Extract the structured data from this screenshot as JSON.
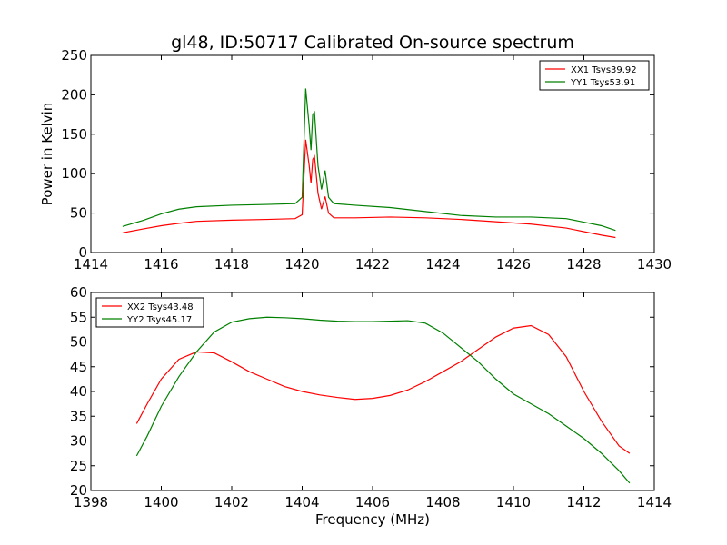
{
  "figure": {
    "title": "gl48, ID:50717 Calibrated On-source spectrum",
    "xlabel": "Frequency (MHz)"
  },
  "colors": {
    "xx": "#ff0000",
    "yy": "#008000",
    "frame": "#000000",
    "background": "#ffffff"
  },
  "chart_data": [
    {
      "type": "line",
      "title": "gl48, ID:50717 Calibrated On-source spectrum",
      "xlabel": "",
      "ylabel": "Power in Kelvin",
      "xlim": [
        1414,
        1430
      ],
      "ylim": [
        0,
        250
      ],
      "xticks": [
        1414,
        1416,
        1418,
        1420,
        1422,
        1424,
        1426,
        1428,
        1430
      ],
      "yticks": [
        0,
        50,
        100,
        150,
        200,
        250
      ],
      "grid": false,
      "legend_position": "top-right",
      "series": [
        {
          "name": "XX1 Tsys39.92",
          "color": "#ff0000",
          "x": [
            1414.9,
            1415.5,
            1416.0,
            1416.5,
            1417.0,
            1418.0,
            1419.0,
            1419.8,
            1420.0,
            1420.1,
            1420.2,
            1420.25,
            1420.3,
            1420.35,
            1420.45,
            1420.55,
            1420.65,
            1420.75,
            1420.9,
            1421.5,
            1422.5,
            1423.5,
            1424.5,
            1425.5,
            1426.5,
            1427.5,
            1428.5,
            1428.9
          ],
          "y": [
            25,
            30,
            34,
            37,
            39.5,
            41,
            42,
            43,
            48,
            143,
            110,
            88,
            118,
            122,
            75,
            55,
            71,
            50,
            44,
            44,
            45,
            44,
            42,
            39,
            36,
            31,
            22,
            19
          ]
        },
        {
          "name": "YY1 Tsys53.91",
          "color": "#008000",
          "x": [
            1414.9,
            1415.5,
            1416.0,
            1416.5,
            1417.0,
            1418.0,
            1419.0,
            1419.8,
            1420.0,
            1420.1,
            1420.2,
            1420.25,
            1420.3,
            1420.35,
            1420.45,
            1420.55,
            1420.65,
            1420.75,
            1420.9,
            1421.5,
            1422.5,
            1423.5,
            1424.5,
            1425.5,
            1426.5,
            1427.5,
            1428.5,
            1428.9
          ],
          "y": [
            33,
            41,
            49,
            55,
            58,
            60,
            61,
            62,
            70,
            208,
            160,
            130,
            175,
            178,
            110,
            80,
            104,
            70,
            62,
            60,
            57,
            52,
            47,
            45,
            45,
            43,
            34,
            28
          ]
        }
      ]
    },
    {
      "type": "line",
      "xlabel": "Frequency (MHz)",
      "ylabel": "",
      "xlim": [
        1398,
        1414
      ],
      "ylim": [
        20,
        60
      ],
      "xticks": [
        1398,
        1400,
        1402,
        1404,
        1406,
        1408,
        1410,
        1412,
        1414
      ],
      "yticks": [
        20,
        25,
        30,
        35,
        40,
        45,
        50,
        55,
        60
      ],
      "grid": false,
      "legend_position": "top-left",
      "series": [
        {
          "name": "XX2 Tsys43.48",
          "color": "#ff0000",
          "x": [
            1399.3,
            1399.6,
            1400.0,
            1400.5,
            1401.0,
            1401.5,
            1402.0,
            1402.5,
            1403.0,
            1403.5,
            1404.0,
            1404.5,
            1405.0,
            1405.5,
            1406.0,
            1406.5,
            1407.0,
            1407.5,
            1408.0,
            1408.5,
            1409.0,
            1409.5,
            1410.0,
            1410.5,
            1411.0,
            1411.5,
            1412.0,
            1412.5,
            1413.0,
            1413.3
          ],
          "y": [
            33.5,
            37.5,
            42.5,
            46.5,
            48,
            47.8,
            46,
            44,
            42.5,
            41,
            40,
            39.3,
            38.8,
            38.4,
            38.6,
            39.2,
            40.3,
            42,
            44,
            46,
            48.5,
            51,
            52.8,
            53.3,
            51.5,
            47,
            40,
            34,
            29,
            27.5
          ]
        },
        {
          "name": "YY2 Tsys45.17",
          "color": "#008000",
          "x": [
            1399.3,
            1399.6,
            1400.0,
            1400.5,
            1401.0,
            1401.5,
            1402.0,
            1402.5,
            1403.0,
            1403.5,
            1404.0,
            1404.5,
            1405.0,
            1405.5,
            1406.0,
            1406.5,
            1407.0,
            1407.5,
            1408.0,
            1408.5,
            1409.0,
            1409.5,
            1410.0,
            1410.5,
            1411.0,
            1411.5,
            1412.0,
            1412.5,
            1413.0,
            1413.3
          ],
          "y": [
            27,
            31,
            37,
            43,
            48,
            52,
            54,
            54.7,
            55,
            54.9,
            54.7,
            54.4,
            54.2,
            54.1,
            54.1,
            54.2,
            54.3,
            53.8,
            51.8,
            48.9,
            46,
            42.5,
            39.5,
            37.5,
            35.5,
            33,
            30.5,
            27.5,
            24,
            21.5
          ]
        }
      ]
    }
  ]
}
